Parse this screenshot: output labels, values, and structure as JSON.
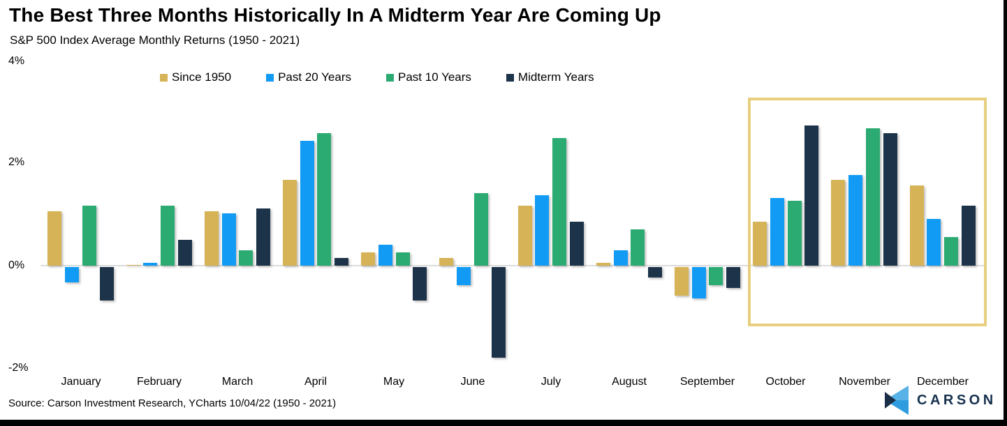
{
  "header": {
    "title": "The Best Three Months Historically In A Midterm Year Are Coming Up",
    "subtitle": "S&P 500 Index Average Monthly Returns (1950 - 2021)"
  },
  "y_axis": {
    "ticks": [
      "4%",
      "2%",
      "0%",
      "-2%"
    ]
  },
  "chart_data": {
    "type": "bar",
    "title": "The Best Three Months Historically In A Midterm Year Are Coming Up",
    "subtitle": "S&P 500 Index Average Monthly Returns (1950 - 2021)",
    "categories": [
      "January",
      "February",
      "March",
      "April",
      "May",
      "June",
      "July",
      "August",
      "September",
      "October",
      "November",
      "December"
    ],
    "series": [
      {
        "name": "Since 1950",
        "color": "#d6b357",
        "values": [
          1.05,
          0.0,
          1.05,
          1.65,
          0.25,
          0.15,
          1.15,
          0.05,
          -0.55,
          0.85,
          1.65,
          1.55
        ]
      },
      {
        "name": "Past 20 Years",
        "color": "#119bf4",
        "values": [
          -0.3,
          0.05,
          1.0,
          2.4,
          0.4,
          -0.35,
          1.35,
          0.3,
          -0.6,
          1.3,
          1.75,
          0.9
        ]
      },
      {
        "name": "Past 10 Years",
        "color": "#2baa72",
        "values": [
          1.15,
          1.15,
          0.3,
          2.55,
          0.25,
          1.4,
          2.45,
          0.7,
          -0.35,
          1.25,
          2.65,
          0.55
        ]
      },
      {
        "name": "Midterm Years",
        "color": "#1c3349",
        "values": [
          -0.65,
          0.5,
          1.1,
          0.15,
          -0.65,
          -1.75,
          0.85,
          -0.2,
          -0.4,
          2.7,
          2.55,
          1.15
        ]
      }
    ],
    "xlabel": "",
    "ylabel": "",
    "y_tick_labels": [
      "4%",
      "2%",
      "0%",
      "-2%"
    ],
    "ylim": [
      -2.2,
      4
    ],
    "grid": false,
    "zero_axis_line": true,
    "legend_position": "top",
    "highlight": {
      "months": [
        "October",
        "November",
        "December"
      ],
      "box_color": "#e7cf7f"
    }
  },
  "source": {
    "text": "Source: Carson Investment Research, YCharts 10/04/22 (1950 - 2021)"
  },
  "logo": {
    "text": "CARSON",
    "text_color": "#16314e",
    "mark_colors": {
      "light": "#58b2e8",
      "mid": "#2f9ce0",
      "dark": "#1a2e49"
    }
  }
}
